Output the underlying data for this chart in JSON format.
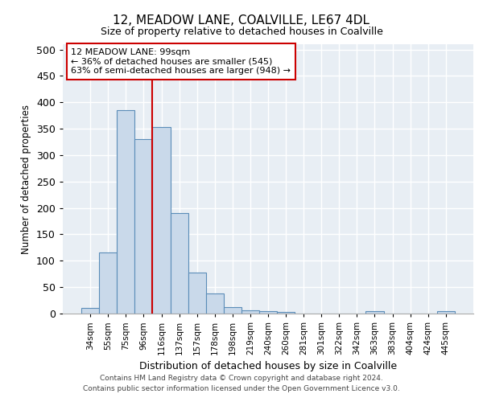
{
  "title1": "12, MEADOW LANE, COALVILLE, LE67 4DL",
  "title2": "Size of property relative to detached houses in Coalville",
  "xlabel": "Distribution of detached houses by size in Coalville",
  "ylabel": "Number of detached properties",
  "categories": [
    "34sqm",
    "55sqm",
    "75sqm",
    "96sqm",
    "116sqm",
    "137sqm",
    "157sqm",
    "178sqm",
    "198sqm",
    "219sqm",
    "240sqm",
    "260sqm",
    "281sqm",
    "301sqm",
    "322sqm",
    "342sqm",
    "363sqm",
    "383sqm",
    "404sqm",
    "424sqm",
    "445sqm"
  ],
  "values": [
    10,
    115,
    385,
    330,
    353,
    190,
    77,
    38,
    12,
    6,
    4,
    3,
    0,
    0,
    0,
    0,
    4,
    0,
    0,
    0,
    4
  ],
  "bar_color": "#c9d9ea",
  "bar_edge_color": "#5b8db8",
  "vline_x": 3.5,
  "vline_color": "#cc0000",
  "annotation_line1": "12 MEADOW LANE: 99sqm",
  "annotation_line2": "← 36% of detached houses are smaller (545)",
  "annotation_line3": "63% of semi-detached houses are larger (948) →",
  "annotation_box_color": "#ffffff",
  "annotation_box_edge": "#cc0000",
  "background_color": "#e8eef4",
  "grid_color": "#ffffff",
  "footer_line1": "Contains HM Land Registry data © Crown copyright and database right 2024.",
  "footer_line2": "Contains public sector information licensed under the Open Government Licence v3.0.",
  "ylim": [
    0,
    510
  ],
  "yticks": [
    0,
    50,
    100,
    150,
    200,
    250,
    300,
    350,
    400,
    450,
    500
  ]
}
